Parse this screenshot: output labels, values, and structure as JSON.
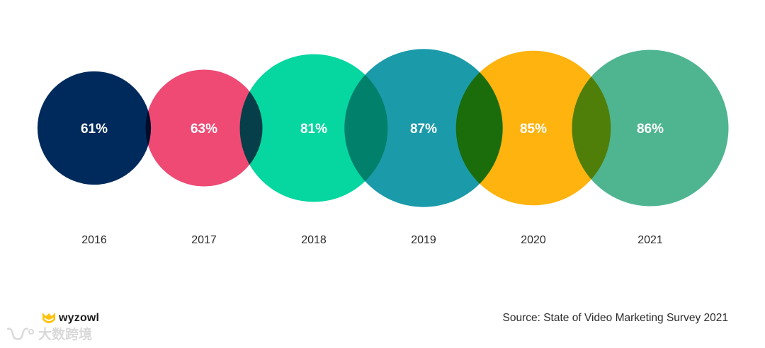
{
  "chart_data": {
    "type": "bubble",
    "categories": [
      "2016",
      "2017",
      "2018",
      "2019",
      "2020",
      "2021"
    ],
    "values": [
      61,
      63,
      81,
      87,
      85,
      86
    ],
    "value_labels": [
      "61%",
      "63%",
      "81%",
      "87%",
      "85%",
      "86%"
    ],
    "colors": [
      "#002a5c",
      "#ee4a74",
      "#06d6a0",
      "#1b9aaa",
      "#ffb30f",
      "#4fb590"
    ],
    "legend": "none",
    "grid": false
  },
  "footer": {
    "source": "Source: State of Video Marketing Survey 2021",
    "brand": "wyzowl",
    "brand_color": "#ffc20e"
  },
  "watermark": {
    "text": "大数跨境",
    "icon": "wechat-channel-icon"
  }
}
